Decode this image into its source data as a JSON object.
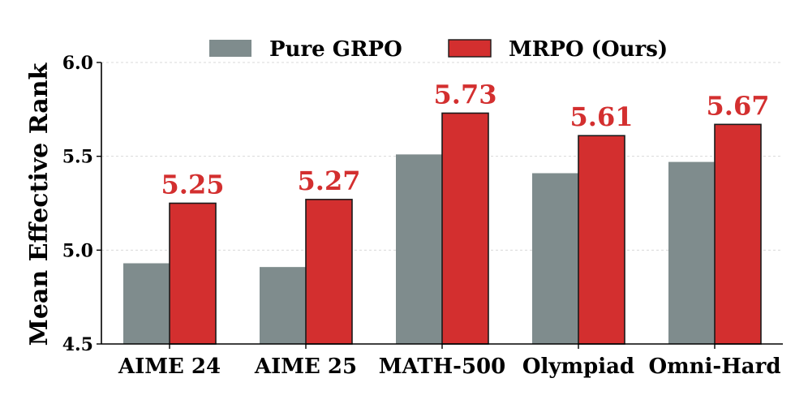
{
  "chart_data": {
    "type": "bar",
    "title": "",
    "xlabel": "",
    "ylabel": "Mean Effective Rank",
    "ylim": [
      4.5,
      6.0
    ],
    "yticks": [
      "4.5",
      "5.0",
      "5.5",
      "6.0"
    ],
    "grid": true,
    "legend_position": "top-center",
    "categories": [
      "AIME 24",
      "AIME 25",
      "MATH-500",
      "Olympiad",
      "Omni-Hard"
    ],
    "series": [
      {
        "name": "Pure GRPO",
        "color": "#7f8c8d",
        "values": [
          4.93,
          4.91,
          5.51,
          5.41,
          5.47
        ]
      },
      {
        "name": "MRPO (Ours)",
        "color": "#d32f2f",
        "values": [
          5.25,
          5.27,
          5.73,
          5.61,
          5.67
        ],
        "data_labels": [
          "5.25",
          "5.27",
          "5.73",
          "5.61",
          "5.67"
        ]
      }
    ]
  }
}
